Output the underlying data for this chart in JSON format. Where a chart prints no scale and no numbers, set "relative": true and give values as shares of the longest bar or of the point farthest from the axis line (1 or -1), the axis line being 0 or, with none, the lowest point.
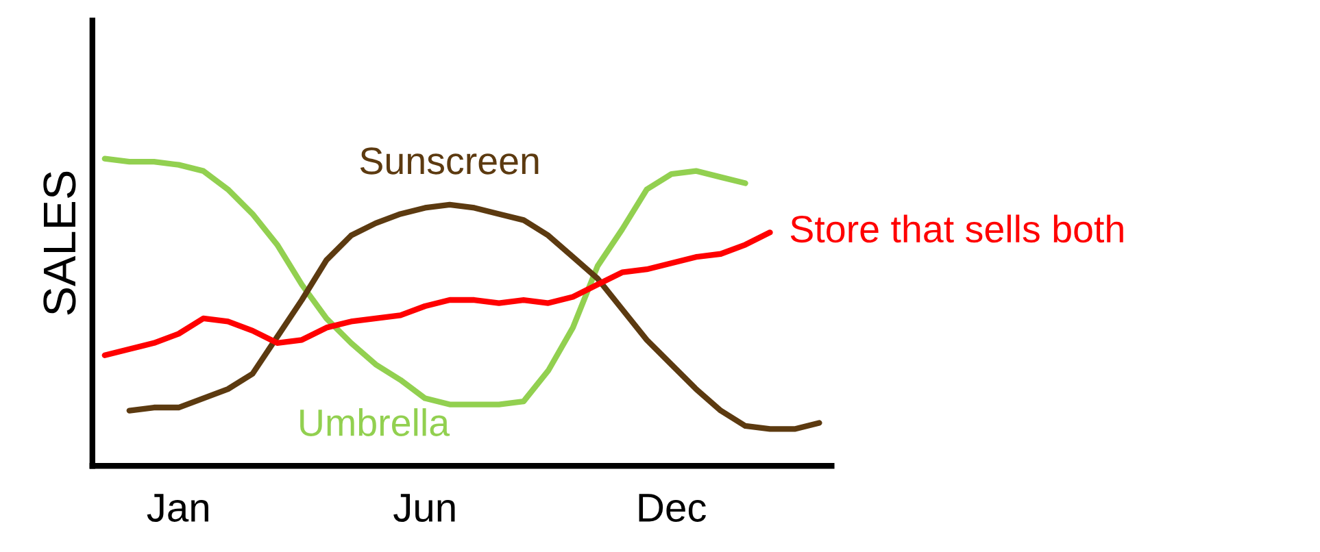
{
  "chart_data": {
    "type": "line",
    "relative": true,
    "ylabel": "SALES",
    "grid": false,
    "legend": false,
    "marker": "none",
    "line_style": "solid",
    "categories": [
      null,
      null,
      null,
      "Jan",
      null,
      null,
      null,
      null,
      null,
      null,
      null,
      null,
      null,
      "Jun",
      null,
      null,
      null,
      null,
      null,
      null,
      null,
      null,
      null,
      "Dec",
      null,
      null,
      null,
      null,
      null,
      null
    ],
    "series": [
      {
        "name": "Umbrella",
        "color": "#92d050",
        "values": [
          1.0,
          0.99,
          0.99,
          0.98,
          0.96,
          0.9,
          0.82,
          0.72,
          0.59,
          0.48,
          0.4,
          0.33,
          0.28,
          0.22,
          0.2,
          0.2,
          0.2,
          0.21,
          0.31,
          0.45,
          0.65,
          0.77,
          0.9,
          0.95,
          0.96,
          0.94,
          0.92,
          null,
          null,
          null
        ]
      },
      {
        "name": "Sunscreen",
        "color": "#5c3a10",
        "values": [
          null,
          0.18,
          0.19,
          0.19,
          0.22,
          0.25,
          0.3,
          0.42,
          0.54,
          0.67,
          0.75,
          0.79,
          0.82,
          0.84,
          0.85,
          0.84,
          0.82,
          0.8,
          0.75,
          0.68,
          0.61,
          0.51,
          0.41,
          0.33,
          0.25,
          0.18,
          0.13,
          0.12,
          0.12,
          0.14
        ]
      },
      {
        "name": "Store that sells both",
        "color": "#ff0000",
        "values": [
          0.36,
          0.38,
          0.4,
          0.43,
          0.48,
          0.47,
          0.44,
          0.4,
          0.41,
          0.45,
          0.47,
          0.48,
          0.49,
          0.52,
          0.54,
          0.54,
          0.53,
          0.54,
          0.53,
          0.55,
          0.59,
          0.63,
          0.64,
          0.66,
          0.68,
          0.69,
          0.72,
          0.76,
          null,
          null
        ]
      }
    ]
  }
}
